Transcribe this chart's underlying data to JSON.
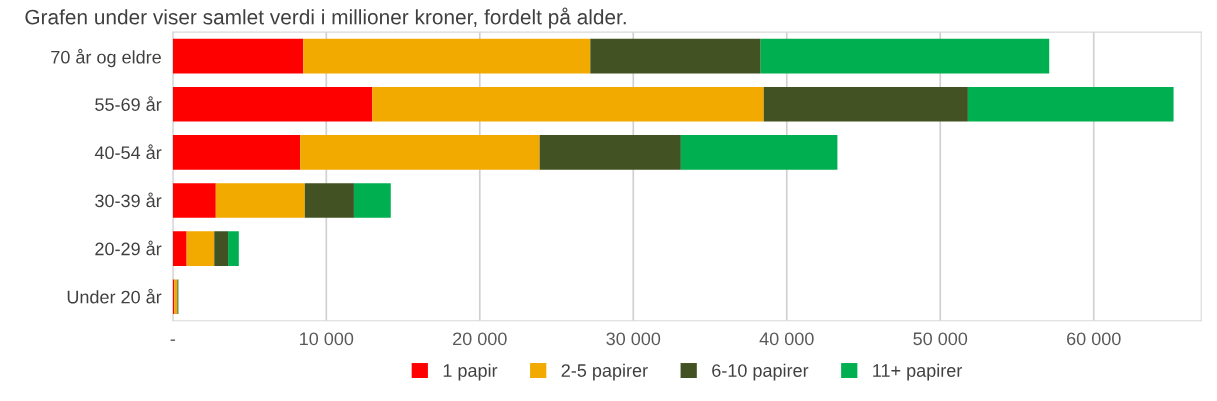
{
  "chart_data": {
    "type": "bar",
    "orientation": "horizontal",
    "stacked": true,
    "title": "Grafen under viser samlet verdi i millioner kroner, fordelt på alder.",
    "categories": [
      "70 år og eldre",
      "55-69 år",
      "40-54 år",
      "30-39 år",
      "20-29 år",
      "Under 20 år"
    ],
    "series": [
      {
        "name": "1 papir",
        "color": "#ff0000",
        "values": [
          8500,
          13000,
          8300,
          2800,
          900,
          100
        ]
      },
      {
        "name": "2-5 papirer",
        "color": "#f2a900",
        "values": [
          18700,
          25500,
          15600,
          5800,
          1800,
          200
        ]
      },
      {
        "name": "6-10 papirer",
        "color": "#435223",
        "values": [
          11100,
          13300,
          9200,
          3200,
          900,
          50
        ]
      },
      {
        "name": "11+ papirer",
        "color": "#00b050",
        "values": [
          18800,
          13400,
          10200,
          2400,
          700,
          20
        ]
      }
    ],
    "xlim": [
      0,
      67000
    ],
    "xticks": [
      {
        "value": 0,
        "label": "-"
      },
      {
        "value": 10000,
        "label": "10 000"
      },
      {
        "value": 20000,
        "label": "20 000"
      },
      {
        "value": 30000,
        "label": "30 000"
      },
      {
        "value": 40000,
        "label": "40 000"
      },
      {
        "value": 50000,
        "label": "50 000"
      },
      {
        "value": 60000,
        "label": "60 000"
      }
    ],
    "grid": "x",
    "legend": "bottom"
  }
}
